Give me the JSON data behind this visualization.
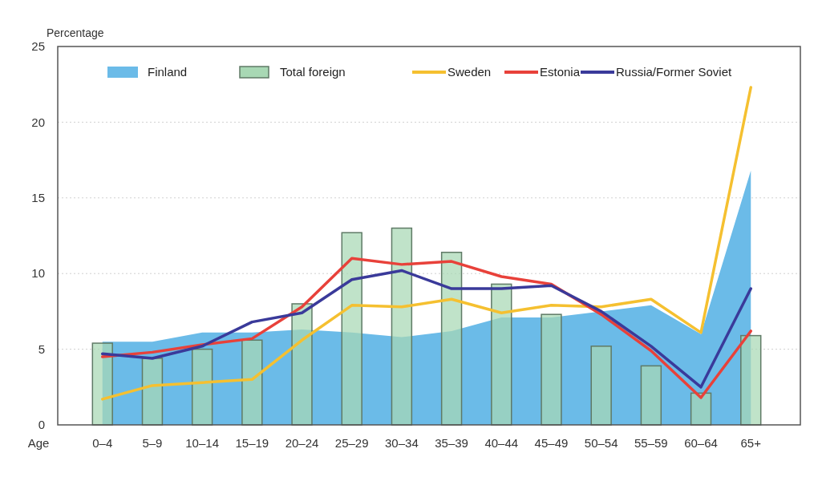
{
  "chart_data": {
    "type": "bar",
    "xlabel": "Age",
    "ylabel": "Percentage",
    "categories": [
      "0–4",
      "5–9",
      "10–14",
      "15–19",
      "20–24",
      "25–29",
      "30–34",
      "35–39",
      "40–44",
      "45–49",
      "50–54",
      "55–59",
      "60–64",
      "65+"
    ],
    "series": [
      {
        "name": "Finland",
        "type": "area",
        "color": "#6bbbe8",
        "values": [
          5.5,
          5.5,
          6.1,
          6.1,
          6.3,
          6.1,
          5.8,
          6.2,
          7.1,
          7.1,
          7.5,
          7.9,
          6.0,
          16.8
        ]
      },
      {
        "name": "Total foreign",
        "color": "#a8d8b4",
        "values": [
          5.4,
          4.4,
          5.0,
          5.6,
          8.0,
          12.7,
          13.0,
          11.4,
          9.3,
          7.3,
          5.2,
          3.9,
          2.1,
          5.9
        ]
      },
      {
        "name": "Sweden",
        "type": "line",
        "color": "#f5c030",
        "values": [
          1.7,
          2.6,
          2.8,
          3.0,
          5.6,
          7.9,
          7.8,
          8.3,
          7.4,
          7.9,
          7.8,
          8.3,
          6.1,
          22.3
        ]
      },
      {
        "name": "Estonia",
        "type": "line",
        "color": "#e8413a",
        "values": [
          4.5,
          4.8,
          5.3,
          5.7,
          7.8,
          11.0,
          10.6,
          10.8,
          9.8,
          9.3,
          7.3,
          4.9,
          1.8,
          6.2
        ]
      },
      {
        "name": "Russia/Former Soviet",
        "type": "line",
        "color": "#3a3a9a",
        "values": [
          4.7,
          4.4,
          5.2,
          6.8,
          7.4,
          9.6,
          10.2,
          9.0,
          9.0,
          9.2,
          7.5,
          5.2,
          2.5,
          9.0
        ]
      }
    ],
    "ylim": [
      0,
      25
    ],
    "yticks": [
      0,
      5,
      10,
      15,
      20,
      25
    ],
    "grid": "y",
    "legend": "top left",
    "line_style": "solid",
    "marker": "none"
  }
}
